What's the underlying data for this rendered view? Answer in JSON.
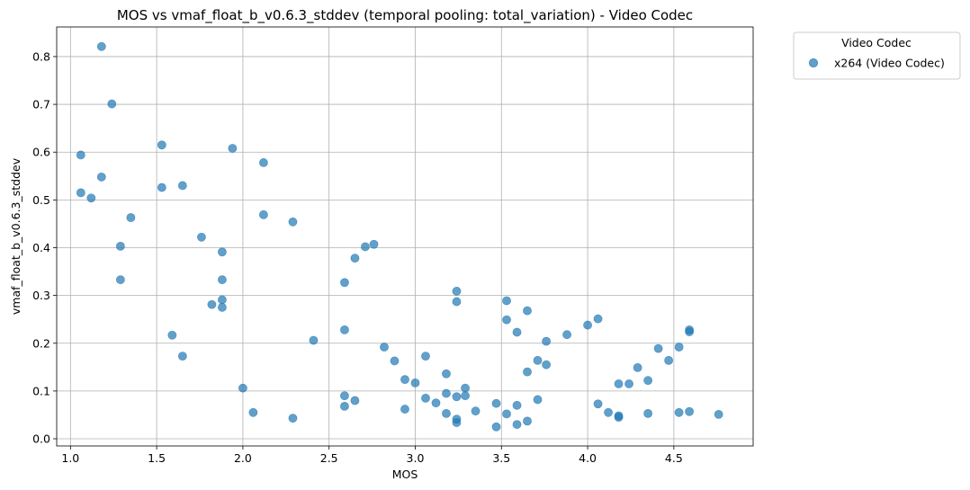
{
  "chart_data": {
    "type": "scatter",
    "title": "MOS vs vmaf_float_b_v0.6.3_stddev (temporal pooling: total_variation) - Video Codec",
    "xlabel": "MOS",
    "ylabel": "vmaf_float_b_v0.6.3_stddev",
    "xlim": [
      0.92,
      4.96
    ],
    "ylim": [
      -0.015,
      0.862
    ],
    "xticks": [
      "1.0",
      "1.5",
      "2.0",
      "2.5",
      "3.0",
      "3.5",
      "4.0",
      "4.5"
    ],
    "yticks": [
      "0.0",
      "0.1",
      "0.2",
      "0.3",
      "0.4",
      "0.5",
      "0.6",
      "0.7",
      "0.8"
    ],
    "grid": true,
    "legend_title": "Video Codec",
    "legend_position": "outside-top-right",
    "color": "#1f77b4",
    "series": [
      {
        "name": "x264 (Video Codec)",
        "points": [
          [
            1.18,
            0.821
          ],
          [
            1.24,
            0.701
          ],
          [
            1.06,
            0.594
          ],
          [
            1.18,
            0.548
          ],
          [
            1.06,
            0.515
          ],
          [
            1.12,
            0.504
          ],
          [
            1.35,
            0.463
          ],
          [
            1.29,
            0.403
          ],
          [
            1.29,
            0.333
          ],
          [
            1.53,
            0.615
          ],
          [
            1.53,
            0.526
          ],
          [
            1.65,
            0.53
          ],
          [
            1.94,
            0.608
          ],
          [
            2.12,
            0.578
          ],
          [
            2.12,
            0.469
          ],
          [
            2.29,
            0.454
          ],
          [
            1.76,
            0.422
          ],
          [
            1.88,
            0.391
          ],
          [
            1.88,
            0.333
          ],
          [
            1.88,
            0.291
          ],
          [
            1.82,
            0.281
          ],
          [
            1.88,
            0.275
          ],
          [
            1.59,
            0.217
          ],
          [
            1.65,
            0.173
          ],
          [
            2.0,
            0.106
          ],
          [
            2.06,
            0.055
          ],
          [
            2.29,
            0.043
          ],
          [
            2.41,
            0.206
          ],
          [
            2.59,
            0.327
          ],
          [
            2.59,
            0.228
          ],
          [
            2.65,
            0.378
          ],
          [
            2.71,
            0.402
          ],
          [
            2.76,
            0.407
          ],
          [
            2.59,
            0.09
          ],
          [
            2.59,
            0.068
          ],
          [
            2.65,
            0.08
          ],
          [
            2.82,
            0.192
          ],
          [
            2.88,
            0.163
          ],
          [
            2.94,
            0.124
          ],
          [
            3.0,
            0.117
          ],
          [
            2.94,
            0.062
          ],
          [
            3.06,
            0.173
          ],
          [
            3.06,
            0.085
          ],
          [
            3.12,
            0.075
          ],
          [
            3.18,
            0.136
          ],
          [
            3.18,
            0.095
          ],
          [
            3.18,
            0.053
          ],
          [
            3.24,
            0.309
          ],
          [
            3.24,
            0.287
          ],
          [
            3.24,
            0.088
          ],
          [
            3.24,
            0.041
          ],
          [
            3.24,
            0.034
          ],
          [
            3.29,
            0.106
          ],
          [
            3.29,
            0.09
          ],
          [
            3.35,
            0.058
          ],
          [
            3.47,
            0.074
          ],
          [
            3.47,
            0.025
          ],
          [
            3.53,
            0.289
          ],
          [
            3.53,
            0.249
          ],
          [
            3.53,
            0.052
          ],
          [
            3.59,
            0.223
          ],
          [
            3.59,
            0.07
          ],
          [
            3.59,
            0.03
          ],
          [
            3.65,
            0.268
          ],
          [
            3.65,
            0.14
          ],
          [
            3.65,
            0.037
          ],
          [
            3.71,
            0.164
          ],
          [
            3.71,
            0.082
          ],
          [
            3.76,
            0.204
          ],
          [
            3.76,
            0.155
          ],
          [
            3.88,
            0.218
          ],
          [
            4.0,
            0.238
          ],
          [
            4.06,
            0.251
          ],
          [
            4.06,
            0.073
          ],
          [
            4.12,
            0.055
          ],
          [
            4.18,
            0.115
          ],
          [
            4.18,
            0.048
          ],
          [
            4.18,
            0.045
          ],
          [
            4.24,
            0.115
          ],
          [
            4.29,
            0.149
          ],
          [
            4.35,
            0.122
          ],
          [
            4.35,
            0.053
          ],
          [
            4.41,
            0.189
          ],
          [
            4.47,
            0.164
          ],
          [
            4.53,
            0.192
          ],
          [
            4.53,
            0.055
          ],
          [
            4.59,
            0.228
          ],
          [
            4.59,
            0.224
          ],
          [
            4.59,
            0.057
          ],
          [
            4.76,
            0.051
          ]
        ]
      }
    ]
  }
}
